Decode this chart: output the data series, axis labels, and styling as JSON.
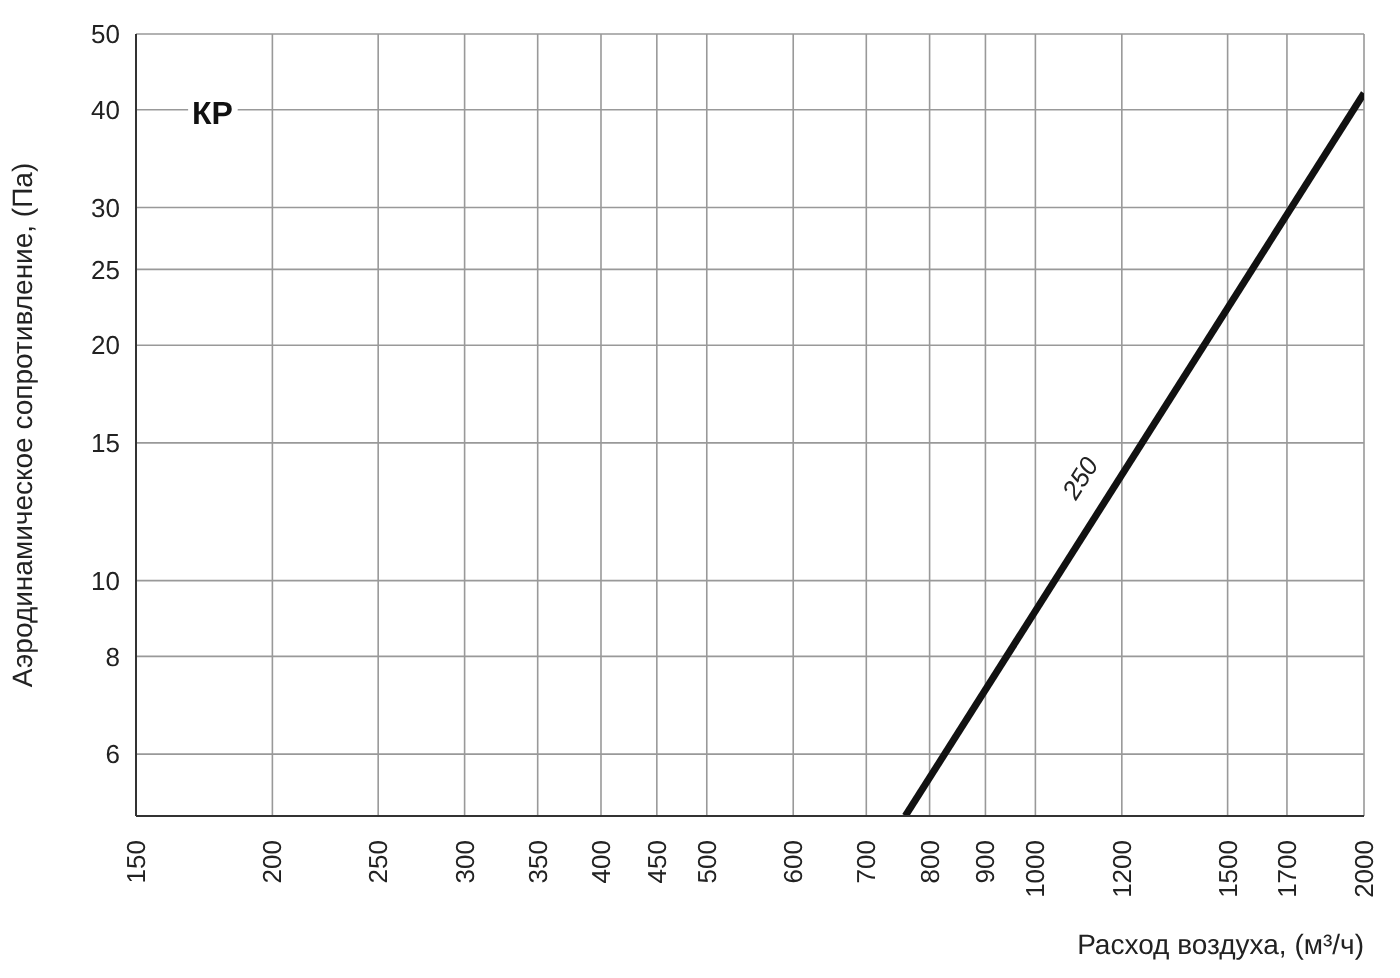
{
  "chart_data": {
    "type": "line",
    "xlabel": "Расход воздуха, (м³/ч)",
    "ylabel": "Аэродинамическое сопротивление, (Па)",
    "annotations": [
      "КР"
    ],
    "log": "xy",
    "grid": true,
    "marker": "none",
    "line_style": "solid",
    "xlim": [
      150,
      2000
    ],
    "xticks": [
      150,
      200,
      250,
      300,
      350,
      400,
      450,
      500,
      600,
      700,
      800,
      900,
      1000,
      1200,
      1500,
      1700,
      2000
    ],
    "ylim": [
      5,
      50
    ],
    "yticks": [
      6,
      8,
      10,
      15,
      20,
      25,
      30,
      40,
      50
    ],
    "series": [
      {
        "name": "250",
        "color": "#111111",
        "x": [
          760,
          2000
        ],
        "values": [
          5,
          42
        ]
      }
    ]
  }
}
